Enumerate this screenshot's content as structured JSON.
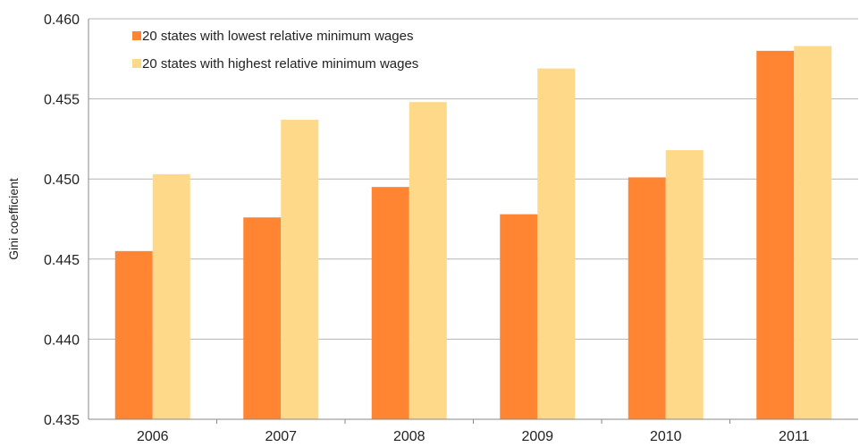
{
  "chart_data": {
    "type": "bar",
    "title": "",
    "xlabel": "",
    "ylabel": "Gini coefficient",
    "ylim": [
      0.435,
      0.46
    ],
    "yticks": [
      "0.435",
      "0.440",
      "0.445",
      "0.450",
      "0.455",
      "0.460"
    ],
    "categories": [
      "2006",
      "2007",
      "2008",
      "2009",
      "2010",
      "2011"
    ],
    "grid": true,
    "legend_position": "top-left",
    "series": [
      {
        "name": "20 states with lowest relative minimum wages",
        "color": "#FF8533",
        "values": [
          0.4455,
          0.4476,
          0.4495,
          0.4478,
          0.4501,
          0.458
        ]
      },
      {
        "name": "20 states with highest relative minimum wages",
        "color": "#FFD98A",
        "values": [
          0.4503,
          0.4537,
          0.4548,
          0.4569,
          0.4518,
          0.4583
        ]
      }
    ]
  }
}
